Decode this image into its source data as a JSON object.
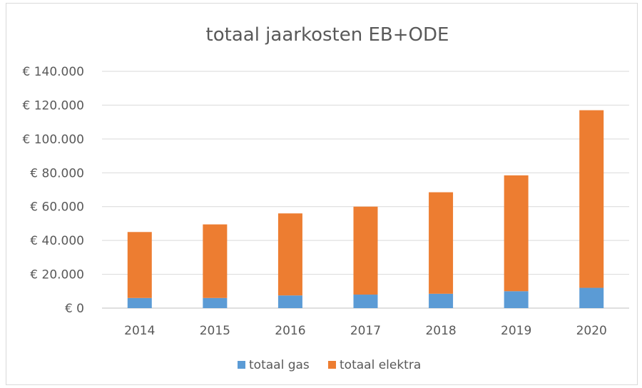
{
  "chart_data": {
    "type": "bar",
    "stacked": true,
    "title": "totaal jaarkosten EB+ODE",
    "xlabel": "",
    "ylabel": "",
    "categories": [
      "2014",
      "2015",
      "2016",
      "2017",
      "2018",
      "2019",
      "2020"
    ],
    "series": [
      {
        "name": "totaal gas",
        "color": "#5b9bd5",
        "values": [
          6000,
          6000,
          7500,
          8000,
          8500,
          10000,
          12000
        ]
      },
      {
        "name": "totaal elektra",
        "color": "#ed7d31",
        "values": [
          39000,
          43500,
          48500,
          52000,
          60000,
          68500,
          105000
        ]
      }
    ],
    "ylim": [
      0,
      140000
    ],
    "yticks": [
      {
        "value": 0,
        "label": "€ 0"
      },
      {
        "value": 20000,
        "label": "€ 20.000"
      },
      {
        "value": 40000,
        "label": "€ 40.000"
      },
      {
        "value": 60000,
        "label": "€ 60.000"
      },
      {
        "value": 80000,
        "label": "€ 80.000"
      },
      {
        "value": 100000,
        "label": "€ 100.000"
      },
      {
        "value": 120000,
        "label": "€ 120.000"
      },
      {
        "value": 140000,
        "label": "€ 140.000"
      }
    ],
    "grid": true,
    "legend_position": "bottom"
  }
}
